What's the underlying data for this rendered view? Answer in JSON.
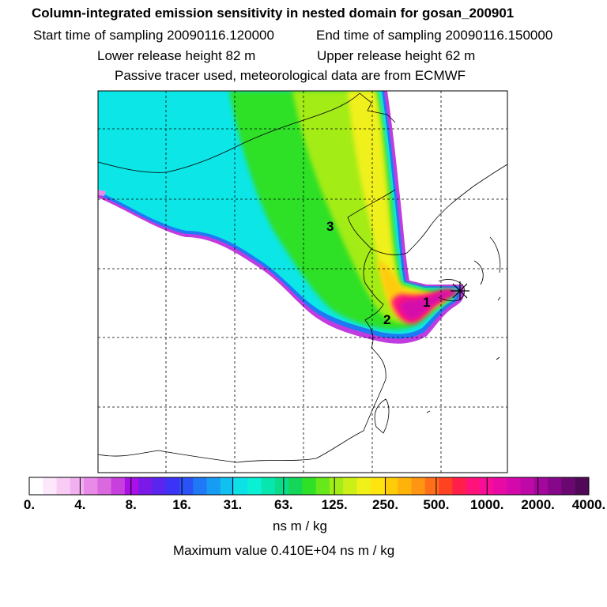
{
  "title": "Column-integrated emission sensitivity in nested domain for gosan_200901",
  "sampling": {
    "start": "Start time of sampling 20090116.120000",
    "end": "End time of sampling 20090116.150000"
  },
  "release": {
    "lower": "Lower release height   82 m",
    "upper": "Upper release height   62 m"
  },
  "tracer_note": "Passive tracer used, meteorological data are from ECMWF",
  "map_labels": {
    "label_1": "1",
    "label_2": "2",
    "label_3": "3"
  },
  "colorbar": {
    "ticks": [
      "0.",
      "4.",
      "8.",
      "16.",
      "31.",
      "63.",
      "125.",
      "250.",
      "500.",
      "1000.",
      "2000.",
      "4000."
    ],
    "units": "ns m / kg",
    "colors": [
      "#ffffff",
      "#fde8fb",
      "#f8ccf5",
      "#f2b0f0",
      "#e98ae8",
      "#da68df",
      "#c73fdd",
      "#a90fe6",
      "#7b1ae8",
      "#5a25ee",
      "#3b33f5",
      "#2a52f6",
      "#1f78f5",
      "#169cf3",
      "#10c0f0",
      "#0ce2e6",
      "#0af0d5",
      "#08e6b0",
      "#0adc8a",
      "#14d658",
      "#2ee026",
      "#66e81a",
      "#a3ec17",
      "#ccef18",
      "#f0f01a",
      "#ffe410",
      "#ffcc0a",
      "#ffb20a",
      "#ff9512",
      "#ff6f1a",
      "#ff4322",
      "#ff1f4a",
      "#ff127a",
      "#f80e96",
      "#e80aa5",
      "#d409ab",
      "#bf08a8",
      "#a3079c",
      "#86078a",
      "#6a0870",
      "#520858"
    ]
  },
  "max_value": "Maximum value  0.410E+04 ns m / kg",
  "colors": {
    "frame": "#000000",
    "grid": "#000000",
    "coast": "#000000",
    "receptor": "#000000"
  }
}
